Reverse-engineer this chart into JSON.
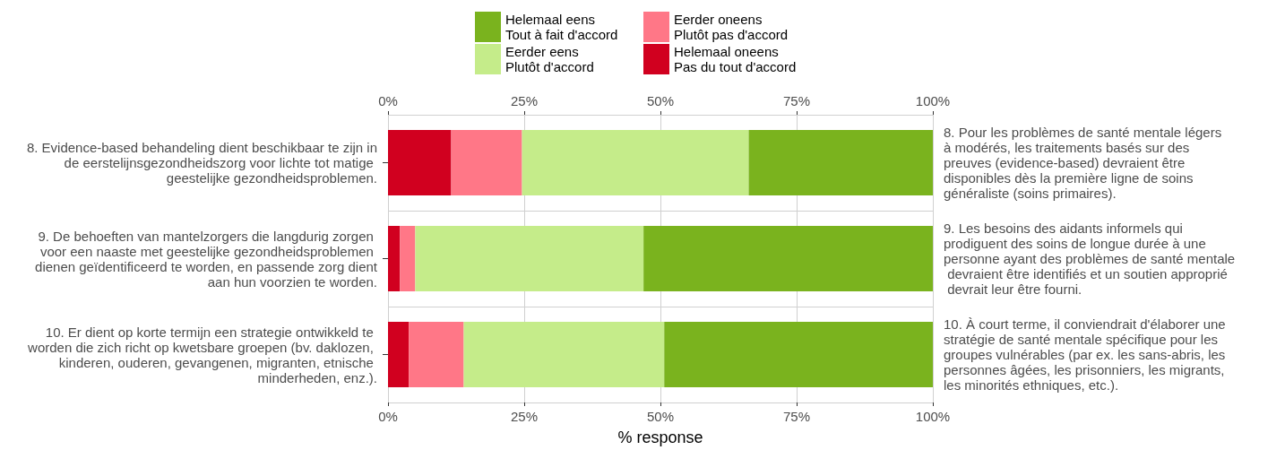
{
  "chart_data": {
    "type": "bar",
    "orientation": "horizontal",
    "stacked": true,
    "categories": [
      "8. Evidence-based behandeling dient beschikbaar te zijn in de eerstelijnsgezondheidszorg voor lichte tot matige geestelijke gezondheidsproblemen.",
      "9. De behoeften van mantelzorgers die langdurig zorgen voor een naaste met geestelijke gezondheidsproblemen dienen geïdentificeerd te worden, en passende zorg dient aan hun voorzien te worden.",
      "10. Er dient op korte termijn een strategie ontwikkeld te worden die zich richt op kwetsbare groepen (bv. daklozen, kinderen, ouderen, gevangenen, migranten, etnische minderheden, enz.)."
    ],
    "y2_categories": [
      "8. Pour les problèmes de santé mentale légers à modérés, les traitements basés sur des preuves (evidence-based) devraient être disponibles dès la première ligne de soins généraliste (soins primaires).",
      "9. Les besoins des aidants informels qui prodiguent des soins de longue durée à une personne ayant des problèmes de santé mentale devraient être identifiés et un soutien approprié devrait leur être fourni.",
      "10. À court terme, il conviendrait d'élaborer une stratégie de santé mentale spécifique pour les groupes vulnérables (par ex. les sans-abris, les personnes âgées, les prisonniers, les migrants, les minorités ethniques, etc.)."
    ],
    "series": [
      {
        "name": "Helemaal oneens\nPas du tout d'accord",
        "color": "#d1001f",
        "values": [
          11.6,
          2.2,
          3.8
        ]
      },
      {
        "name": "Eerder oneens\nPlutôt pas d'accord",
        "color": "#ff7787",
        "values": [
          13.0,
          2.8,
          10.1
        ]
      },
      {
        "name": "Eerder eens\nPlutôt d'accord",
        "color": "#c5ec8a",
        "values": [
          41.6,
          41.9,
          36.8
        ]
      },
      {
        "name": "Helemaal eens\nTout à fait d'accord",
        "color": "#7ab31e",
        "values": [
          33.8,
          53.1,
          49.3
        ]
      }
    ],
    "xlabel": "% response",
    "xlim": [
      0,
      100
    ],
    "xticks": [
      {
        "value": 0,
        "label": "0%"
      },
      {
        "value": 25,
        "label": "25%"
      },
      {
        "value": 50,
        "label": "50%"
      },
      {
        "value": 75,
        "label": "75%"
      },
      {
        "value": 100,
        "label": "100%"
      }
    ],
    "x2lim": [
      0,
      100
    ],
    "x2ticks": [
      {
        "value": 0,
        "label": "0%"
      },
      {
        "value": 25,
        "label": "25%"
      },
      {
        "value": 50,
        "label": "50%"
      },
      {
        "value": 75,
        "label": "75%"
      },
      {
        "value": 100,
        "label": "100%"
      }
    ],
    "grid": true,
    "legend": "top"
  }
}
